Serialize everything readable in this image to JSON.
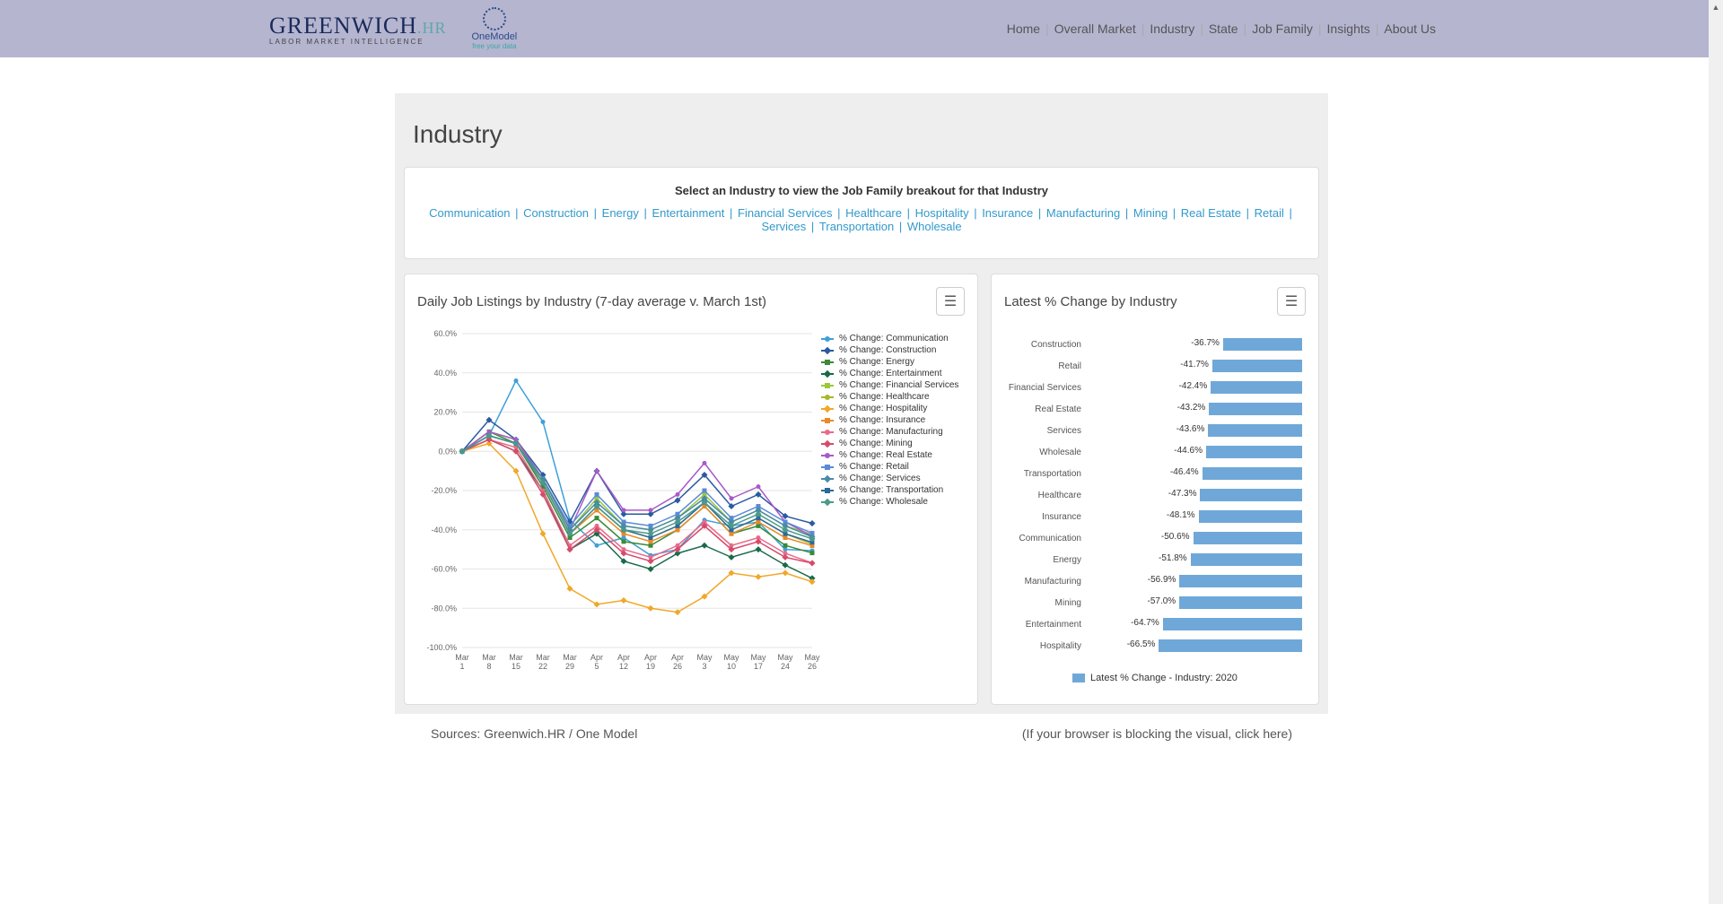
{
  "header": {
    "brand_main": "GREENWICH",
    "brand_suffix": ".HR",
    "brand_tagline": "LABOR MARKET INTELLIGENCE",
    "partner_name": "OneModel",
    "partner_tagline": "free your data",
    "nav": [
      "Home",
      "Overall Market",
      "Industry",
      "State",
      "Job Family",
      "Insights",
      "About Us"
    ]
  },
  "page": {
    "title": "Industry",
    "filter_instruction": "Select an Industry to view the Job Family breakout for that Industry",
    "industries": [
      "Communication",
      "Construction",
      "Energy",
      "Entertainment",
      "Financial Services",
      "Healthcare",
      "Hospitality",
      "Insurance",
      "Manufacturing",
      "Mining",
      "Real Estate",
      "Retail",
      "Services",
      "Transportation",
      "Wholesale"
    ]
  },
  "line_chart": {
    "title": "Daily Job Listings by Industry (7-day average v. March 1st)",
    "type": "line",
    "ylim": [
      -100,
      60
    ],
    "ytick_step": 20,
    "y_suffix": "%",
    "background_color": "#ffffff",
    "grid_color": "#e5e5e5",
    "x_labels": [
      "Mar 1",
      "Mar 8",
      "Mar 15",
      "Mar 22",
      "Mar 29",
      "Apr 5",
      "Apr 12",
      "Apr 19",
      "Apr 26",
      "May 3",
      "May 10",
      "May 17",
      "May 24",
      "May 26"
    ],
    "series": [
      {
        "name": "% Change: Communication",
        "color": "#3fa0d8",
        "marker": "circle",
        "values": [
          0,
          8,
          36,
          15,
          -35,
          -48,
          -44,
          -53,
          -50,
          -35,
          -38,
          -36,
          -50,
          -50.6
        ]
      },
      {
        "name": "% Change: Construction",
        "color": "#2a5aa0",
        "marker": "diamond",
        "values": [
          0,
          16,
          6,
          -12,
          -36,
          -10,
          -32,
          -32,
          -25,
          -12,
          -28,
          -22,
          -33,
          -36.7
        ]
      },
      {
        "name": "% Change: Energy",
        "color": "#3a8a3a",
        "marker": "square",
        "values": [
          0,
          10,
          4,
          -18,
          -44,
          -34,
          -46,
          -48,
          -40,
          -28,
          -42,
          -38,
          -48,
          -51.8
        ]
      },
      {
        "name": "% Change: Entertainment",
        "color": "#1a6a4a",
        "marker": "diamond",
        "values": [
          0,
          6,
          0,
          -20,
          -50,
          -42,
          -56,
          -60,
          -52,
          -48,
          -54,
          -50,
          -58,
          -64.7
        ]
      },
      {
        "name": "% Change: Financial Services",
        "color": "#9ac83a",
        "marker": "square",
        "values": [
          0,
          8,
          4,
          -14,
          -40,
          -24,
          -38,
          -40,
          -34,
          -22,
          -36,
          -30,
          -38,
          -42.4
        ]
      },
      {
        "name": "% Change: Healthcare",
        "color": "#a8b828",
        "marker": "circle",
        "values": [
          0,
          10,
          6,
          -16,
          -42,
          -28,
          -40,
          -44,
          -38,
          -26,
          -40,
          -34,
          -42,
          -47.3
        ]
      },
      {
        "name": "% Change: Hospitality",
        "color": "#f0a828",
        "marker": "diamond",
        "values": [
          0,
          4,
          -10,
          -42,
          -70,
          -78,
          -76,
          -80,
          -82,
          -74,
          -62,
          -64,
          -62,
          -66.5
        ]
      },
      {
        "name": "% Change: Insurance",
        "color": "#e88a28",
        "marker": "square",
        "values": [
          0,
          8,
          4,
          -16,
          -42,
          -30,
          -42,
          -46,
          -40,
          -28,
          -42,
          -36,
          -44,
          -48.1
        ]
      },
      {
        "name": "% Change: Manufacturing",
        "color": "#e86a8a",
        "marker": "circle",
        "values": [
          0,
          6,
          2,
          -20,
          -48,
          -38,
          -50,
          -54,
          -48,
          -36,
          -48,
          -44,
          -52,
          -56.9
        ]
      },
      {
        "name": "% Change: Mining",
        "color": "#d84a6a",
        "marker": "diamond",
        "values": [
          0,
          6,
          0,
          -22,
          -50,
          -40,
          -52,
          -56,
          -50,
          -38,
          -50,
          -46,
          -54,
          -57.0
        ]
      },
      {
        "name": "% Change: Real Estate",
        "color": "#a85ac8",
        "marker": "circle",
        "values": [
          0,
          10,
          6,
          -14,
          -40,
          -10,
          -30,
          -30,
          -22,
          -6,
          -24,
          -18,
          -36,
          -43.2
        ]
      },
      {
        "name": "% Change: Retail",
        "color": "#5a8ad8",
        "marker": "square",
        "values": [
          0,
          8,
          4,
          -14,
          -38,
          -22,
          -36,
          -38,
          -32,
          -20,
          -34,
          -28,
          -36,
          -41.7
        ]
      },
      {
        "name": "% Change: Services",
        "color": "#4a8aa8",
        "marker": "diamond",
        "values": [
          0,
          8,
          4,
          -14,
          -40,
          -26,
          -38,
          -40,
          -34,
          -24,
          -36,
          -30,
          -38,
          -43.6
        ]
      },
      {
        "name": "% Change: Transportation",
        "color": "#2a6a9a",
        "marker": "square",
        "values": [
          0,
          8,
          4,
          -16,
          -42,
          -28,
          -40,
          -44,
          -38,
          -26,
          -40,
          -34,
          -42,
          -46.4
        ]
      },
      {
        "name": "% Change: Wholesale",
        "color": "#4a9a8a",
        "marker": "diamond",
        "values": [
          0,
          8,
          4,
          -16,
          -42,
          -28,
          -40,
          -42,
          -36,
          -26,
          -38,
          -32,
          -40,
          -44.6
        ]
      }
    ]
  },
  "bar_chart": {
    "title": "Latest % Change by Industry",
    "type": "bar-horizontal",
    "legend_label": "Latest % Change - Industry: 2020",
    "bar_color": "#6fa8d8",
    "xlim": [
      -100,
      0
    ],
    "data": [
      {
        "label": "Construction",
        "value": -36.7
      },
      {
        "label": "Retail",
        "value": -41.7
      },
      {
        "label": "Financial Services",
        "value": -42.4
      },
      {
        "label": "Real Estate",
        "value": -43.2
      },
      {
        "label": "Services",
        "value": -43.6
      },
      {
        "label": "Wholesale",
        "value": -44.6
      },
      {
        "label": "Transportation",
        "value": -46.4
      },
      {
        "label": "Healthcare",
        "value": -47.3
      },
      {
        "label": "Insurance",
        "value": -48.1
      },
      {
        "label": "Communication",
        "value": -50.6
      },
      {
        "label": "Energy",
        "value": -51.8
      },
      {
        "label": "Manufacturing",
        "value": -56.9
      },
      {
        "label": "Mining",
        "value": -57.0
      },
      {
        "label": "Entertainment",
        "value": -64.7
      },
      {
        "label": "Hospitality",
        "value": -66.5
      }
    ]
  },
  "footer": {
    "source": "Sources: Greenwich.HR / One Model",
    "blocked_msg": "(If your browser is blocking the visual, click here)"
  }
}
